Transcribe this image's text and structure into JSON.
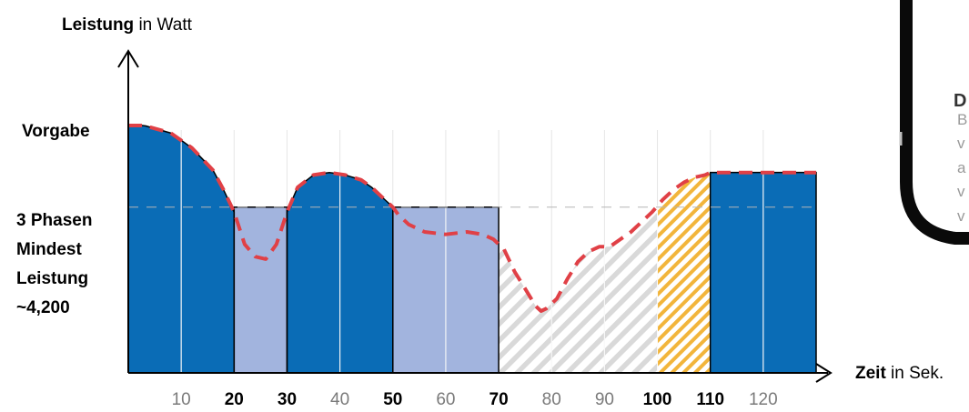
{
  "chart_data": {
    "type": "area",
    "y_axis_title": {
      "bold": "Leistung",
      "rest": " in Watt"
    },
    "x_axis_title": {
      "bold": "Zeit",
      "rest": " in Sek."
    },
    "xlim": [
      0,
      130
    ],
    "ylim": [
      0,
      100
    ],
    "y_labels": [
      {
        "text": "Vorgabe",
        "y": 100
      },
      {
        "text": "3 Phasen",
        "y": 67
      },
      {
        "text": "Mindest",
        "y": 51
      },
      {
        "text": "Leistung",
        "y": 38
      },
      {
        "text": "~4,200",
        "y": 26
      }
    ],
    "x_ticks": [
      {
        "value": 10,
        "label": "10",
        "bold": false
      },
      {
        "value": 20,
        "label": "20",
        "bold": true
      },
      {
        "value": 30,
        "label": "30",
        "bold": true
      },
      {
        "value": 40,
        "label": "40",
        "bold": false
      },
      {
        "value": 50,
        "label": "50",
        "bold": true
      },
      {
        "value": 60,
        "label": "60",
        "bold": false
      },
      {
        "value": 70,
        "label": "70",
        "bold": true
      },
      {
        "value": 80,
        "label": "80",
        "bold": false
      },
      {
        "value": 90,
        "label": "90",
        "bold": false
      },
      {
        "value": 100,
        "label": "100",
        "bold": true
      },
      {
        "value": 110,
        "label": "110",
        "bold": true
      },
      {
        "value": 120,
        "label": "120",
        "bold": false
      }
    ],
    "reference_lines": [
      {
        "y": 67,
        "style": "dashed"
      }
    ],
    "segments": [
      {
        "from": 0,
        "to": 20,
        "fill": "solid",
        "shape": "dome",
        "top": 100
      },
      {
        "from": 20,
        "to": 30,
        "fill": "light",
        "shape": "flat",
        "top": 67
      },
      {
        "from": 30,
        "to": 50,
        "fill": "solid",
        "shape": "dome",
        "top": 81
      },
      {
        "from": 50,
        "to": 70,
        "fill": "light",
        "shape": "flat",
        "top": 67
      },
      {
        "from": 70,
        "to": 100,
        "fill": "hatch-grey",
        "shape": "curve"
      },
      {
        "from": 100,
        "to": 110,
        "fill": "hatch-orange",
        "shape": "curve"
      },
      {
        "from": 110,
        "to": 130,
        "fill": "solid",
        "shape": "flat",
        "top": 81
      }
    ],
    "red_line": {
      "x": [
        0,
        3,
        8,
        12,
        16,
        18,
        20,
        22,
        24,
        26,
        28,
        30,
        32,
        35,
        38,
        41,
        44,
        46,
        48,
        50,
        51,
        53,
        56,
        60,
        64,
        67,
        69,
        71,
        73,
        75,
        77,
        78,
        79,
        81,
        83,
        85,
        87,
        89,
        91,
        93,
        95,
        97,
        99,
        101,
        103,
        105,
        107,
        109,
        110,
        115,
        120,
        125,
        130
      ],
      "y": [
        100,
        100,
        97,
        91,
        82,
        74,
        65,
        52,
        47,
        46,
        52,
        65,
        75,
        80,
        81,
        80,
        78,
        75,
        71,
        67,
        64,
        60,
        57,
        56,
        57,
        56,
        54,
        50,
        41,
        34,
        27,
        25,
        26,
        30,
        38,
        45,
        49,
        51,
        51,
        54,
        57,
        61,
        65,
        70,
        74,
        77,
        79,
        80,
        81,
        81,
        81,
        81,
        81
      ]
    },
    "colors": {
      "solid": "#0a6cb6",
      "light": "#a2b4de",
      "hatch_grey": "#d9d9d9",
      "hatch_orange": "#f2b53b",
      "red_line": "#e04046",
      "phone_frame": "#0a0a0a"
    }
  },
  "phone_fragment": {
    "heading": "D",
    "lines": [
      "B",
      "v",
      "a",
      "v",
      "v"
    ]
  }
}
